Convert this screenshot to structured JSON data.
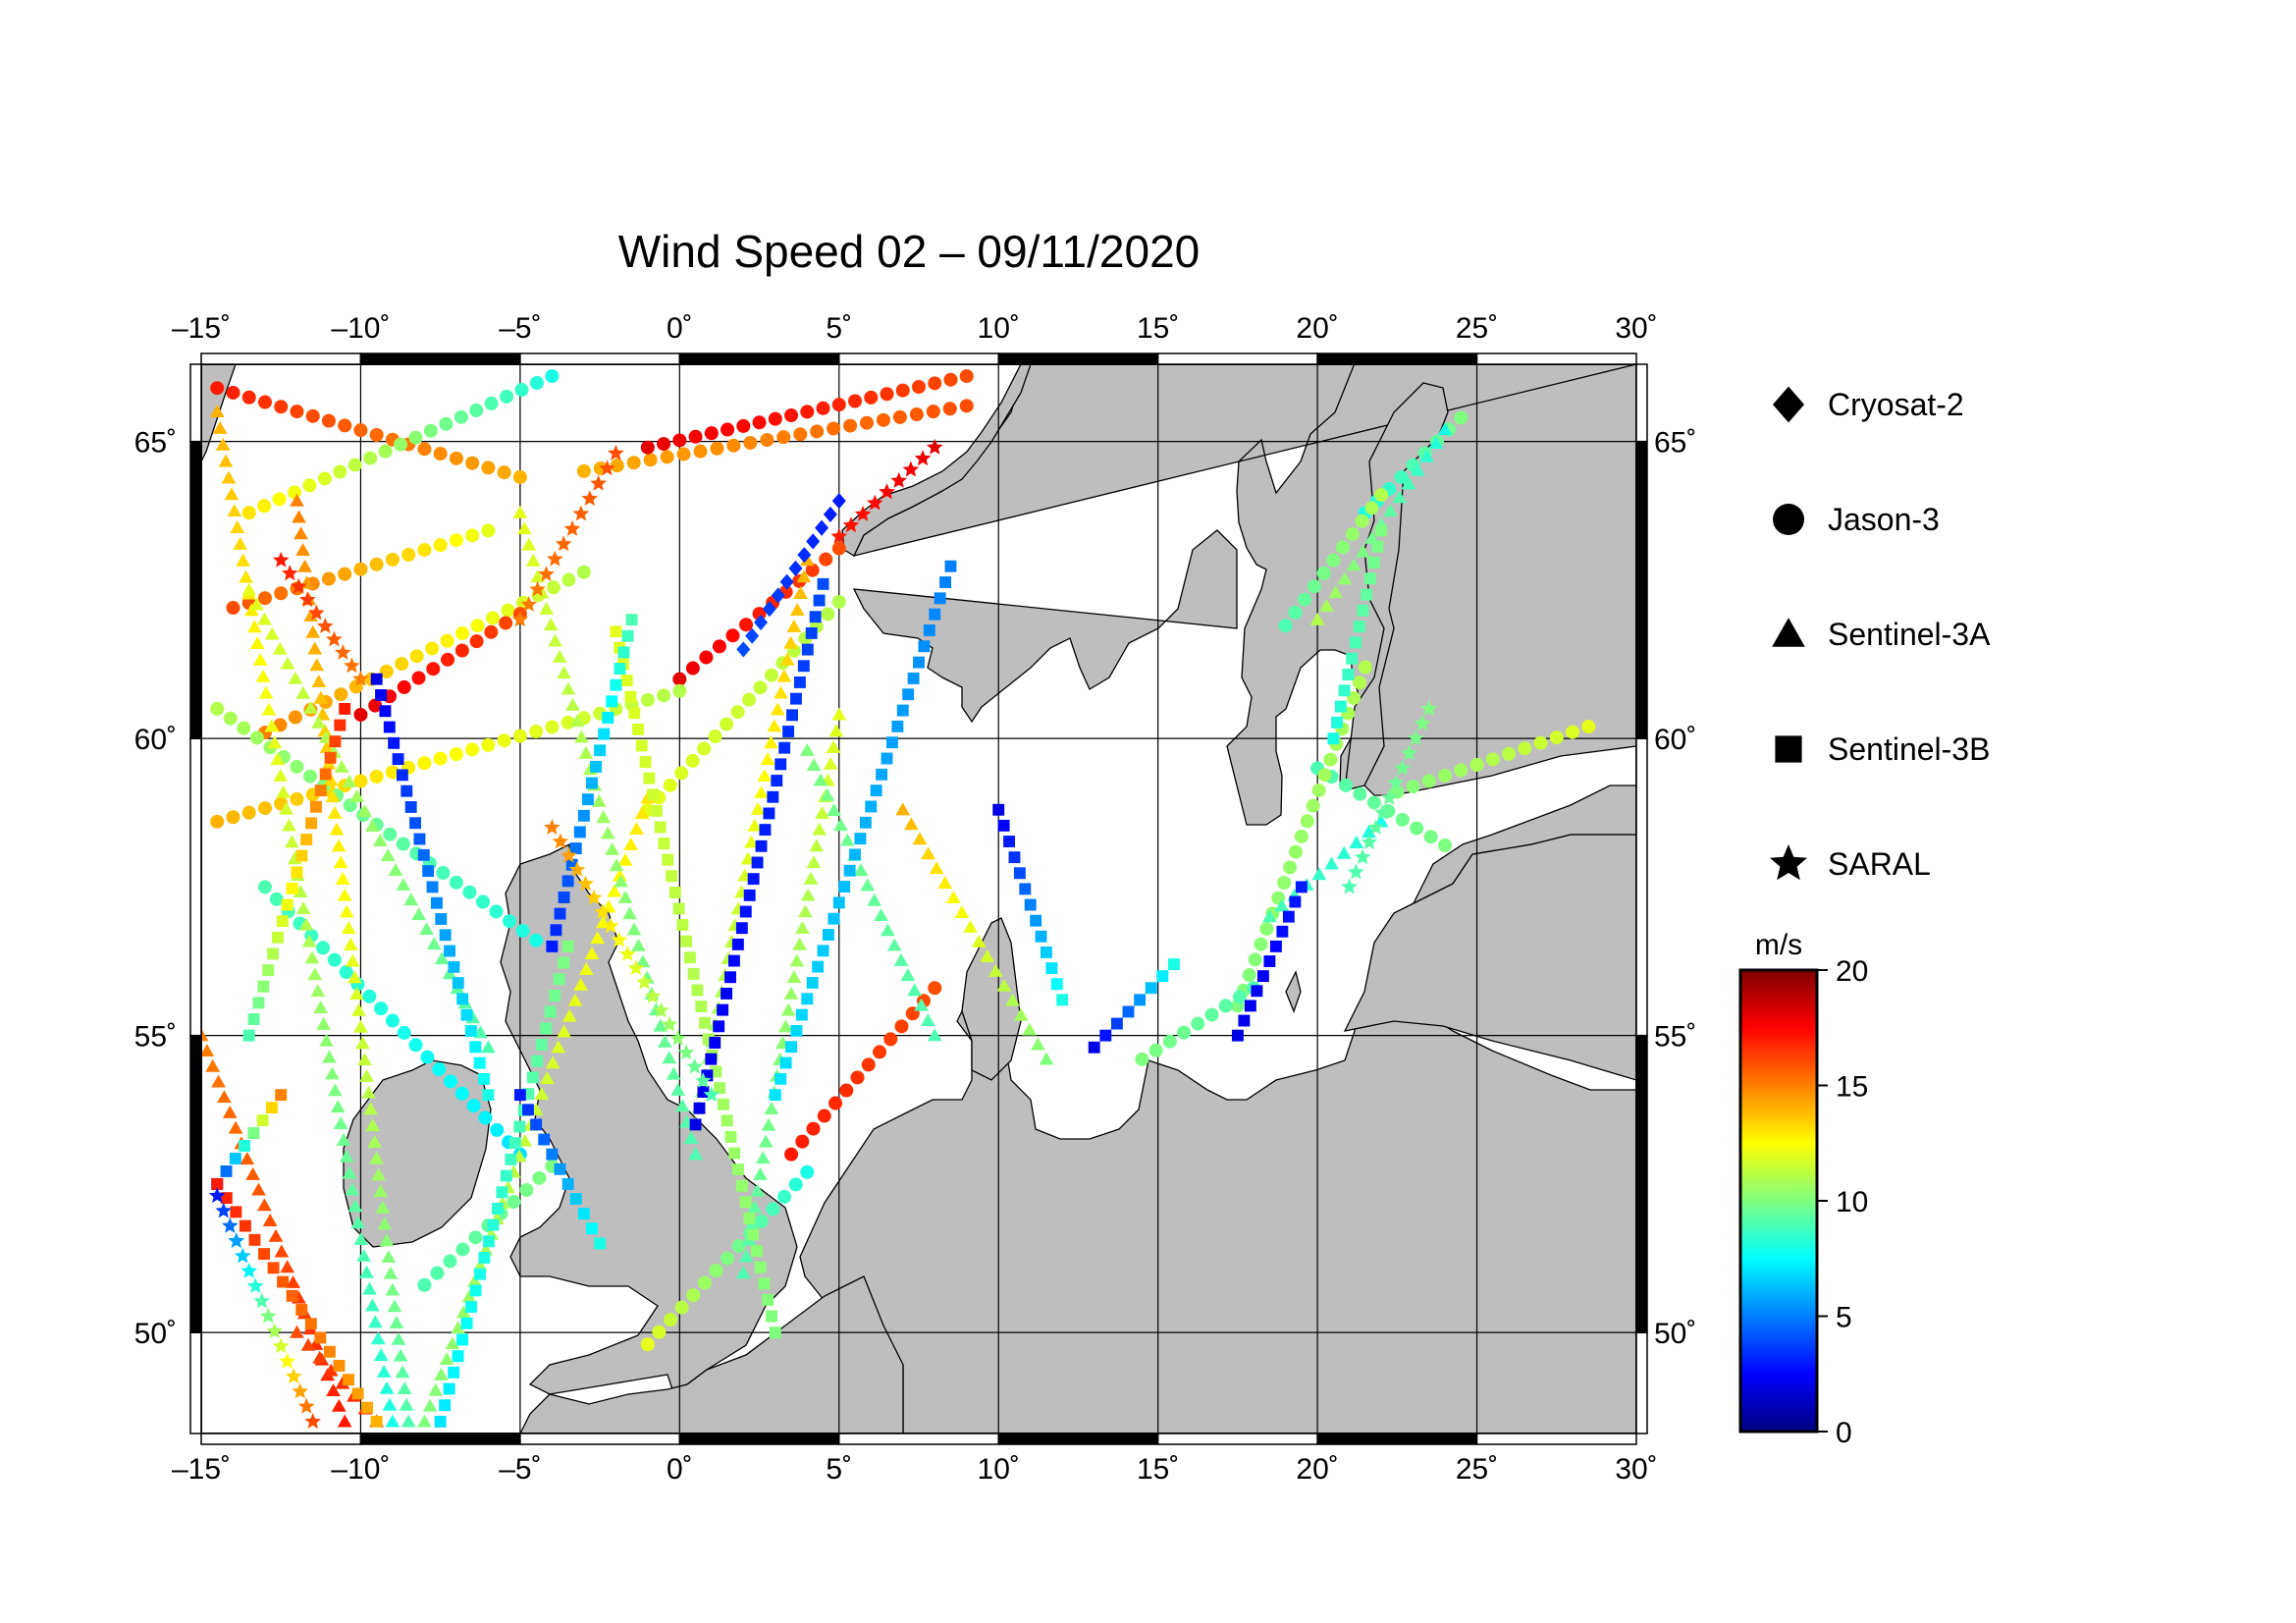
{
  "title": "Wind Speed 02 – 09/11/2020",
  "map": {
    "lon_range": [
      -15,
      30
    ],
    "lat_range": [
      48.3,
      66.3
    ],
    "lon_ticks": [
      {
        "value": -15,
        "label": "–15˚"
      },
      {
        "value": -10,
        "label": "–10˚"
      },
      {
        "value": -5,
        "label": "–5˚"
      },
      {
        "value": 0,
        "label": "0˚"
      },
      {
        "value": 5,
        "label": "5˚"
      },
      {
        "value": 10,
        "label": "10˚"
      },
      {
        "value": 15,
        "label": "15˚"
      },
      {
        "value": 20,
        "label": "20˚"
      },
      {
        "value": 25,
        "label": "25˚"
      },
      {
        "value": 30,
        "label": "30˚"
      }
    ],
    "lat_ticks": [
      {
        "value": 50,
        "label": "50˚"
      },
      {
        "value": 55,
        "label": "55˚"
      },
      {
        "value": 60,
        "label": "60˚"
      },
      {
        "value": 65,
        "label": "65˚"
      }
    ],
    "grid": true,
    "land_color": "#bebebe",
    "sea_color": "#ffffff"
  },
  "legend": {
    "items": [
      {
        "marker": "diamond",
        "label": "Cryosat-2"
      },
      {
        "marker": "circle",
        "label": "Jason-3"
      },
      {
        "marker": "triangle",
        "label": "Sentinel-3A"
      },
      {
        "marker": "square",
        "label": "Sentinel-3B"
      },
      {
        "marker": "star",
        "label": "SARAL"
      }
    ]
  },
  "colorbar": {
    "unit": "m/s",
    "min": 0,
    "max": 20,
    "ticks": [
      {
        "value": 0,
        "label": "0"
      },
      {
        "value": 5,
        "label": "5"
      },
      {
        "value": 10,
        "label": "10"
      },
      {
        "value": 15,
        "label": "15"
      },
      {
        "value": 20,
        "label": "20"
      }
    ],
    "colors": [
      "#00007f",
      "#0000ff",
      "#007fff",
      "#00ffff",
      "#7fff7f",
      "#ffff00",
      "#ff7f00",
      "#ff0000",
      "#7f0000"
    ]
  },
  "tracks": [
    {
      "sat": "circle",
      "lon": [
        -14.5,
        -5
      ],
      "lat": [
        65.9,
        64.4
      ],
      "wind": [
        17,
        14
      ]
    },
    {
      "sat": "circle",
      "lon": [
        -3,
        9
      ],
      "lat": [
        64.5,
        65.6
      ],
      "wind": [
        14,
        16
      ]
    },
    {
      "sat": "circle",
      "lon": [
        -13.5,
        -4
      ],
      "lat": [
        63.8,
        66.1
      ],
      "wind": [
        13,
        8
      ]
    },
    {
      "sat": "circle",
      "lon": [
        -1,
        9
      ],
      "lat": [
        64.9,
        66.1
      ],
      "wind": [
        18,
        16
      ]
    },
    {
      "sat": "circle",
      "lon": [
        -14,
        -6
      ],
      "lat": [
        62.2,
        63.5
      ],
      "wind": [
        16,
        12
      ]
    },
    {
      "sat": "circle",
      "lon": [
        0,
        5
      ],
      "lat": [
        61.0,
        63.2
      ],
      "wind": [
        18,
        16
      ]
    },
    {
      "sat": "circle",
      "lon": [
        -13,
        -3
      ],
      "lat": [
        60.1,
        62.8
      ],
      "wind": [
        15,
        11
      ]
    },
    {
      "sat": "circle",
      "lon": [
        -10,
        -5
      ],
      "lat": [
        60.4,
        62.1
      ],
      "wind": [
        18,
        16
      ]
    },
    {
      "sat": "circle",
      "lon": [
        -14.5,
        0
      ],
      "lat": [
        58.6,
        60.8
      ],
      "wind": [
        14,
        11
      ]
    },
    {
      "sat": "circle",
      "lon": [
        -1,
        5
      ],
      "lat": [
        58.8,
        62.3
      ],
      "wind": [
        12,
        11
      ]
    },
    {
      "sat": "circle",
      "lon": [
        -14.5,
        -4.5
      ],
      "lat": [
        60.5,
        56.6
      ],
      "wind": [
        11,
        8
      ]
    },
    {
      "sat": "circle",
      "lon": [
        -13,
        -5
      ],
      "lat": [
        57.5,
        53.0
      ],
      "wind": [
        9,
        7
      ]
    },
    {
      "sat": "circle",
      "lon": [
        3.5,
        8
      ],
      "lat": [
        53.0,
        55.8
      ],
      "wind": [
        17,
        16
      ]
    },
    {
      "sat": "circle",
      "lon": [
        -8,
        -4
      ],
      "lat": [
        50.8,
        52.8
      ],
      "wind": [
        9,
        10
      ]
    },
    {
      "sat": "circle",
      "lon": [
        -1,
        4
      ],
      "lat": [
        49.8,
        52.7
      ],
      "wind": [
        12,
        8
      ]
    },
    {
      "sat": "circle",
      "lon": [
        20.0,
        24.0
      ],
      "lat": [
        59.5,
        58.2
      ],
      "wind": [
        9,
        10
      ]
    },
    {
      "sat": "circle",
      "lon": [
        22.5,
        28.5
      ],
      "lat": [
        59.1,
        60.2
      ],
      "wind": [
        10,
        12
      ]
    },
    {
      "sat": "circle",
      "lon": [
        17.5,
        21.5
      ],
      "lat": [
        55.5,
        61.2
      ],
      "wind": [
        10,
        11
      ]
    },
    {
      "sat": "circle",
      "lon": [
        21.5,
        24.5
      ],
      "lat": [
        63.8,
        65.4
      ],
      "wind": [
        8,
        10
      ]
    },
    {
      "sat": "circle",
      "lon": [
        19.0,
        22.0
      ],
      "lat": [
        61.9,
        64.1
      ],
      "wind": [
        9,
        11
      ]
    },
    {
      "sat": "circle",
      "lon": [
        14.5,
        18.0
      ],
      "lat": [
        54.6,
        55.8
      ],
      "wind": [
        10,
        9
      ]
    },
    {
      "sat": "triangle",
      "lon": [
        -14.5,
        -9
      ],
      "lat": [
        65.5,
        48.5
      ],
      "wind": [
        14,
        8
      ]
    },
    {
      "sat": "triangle",
      "lon": [
        -12,
        -8.5
      ],
      "lat": [
        64.0,
        48.5
      ],
      "wind": [
        15,
        9
      ]
    },
    {
      "sat": "triangle",
      "lon": [
        -8,
        -1
      ],
      "lat": [
        48.5,
        59.0
      ],
      "wind": [
        10,
        13
      ]
    },
    {
      "sat": "triangle",
      "lon": [
        -5,
        0.5
      ],
      "lat": [
        63.8,
        53.0
      ],
      "wind": [
        12,
        9
      ]
    },
    {
      "sat": "triangle",
      "lon": [
        0.5,
        4
      ],
      "lat": [
        53.5,
        63.0
      ],
      "wind": [
        10,
        14
      ]
    },
    {
      "sat": "triangle",
      "lon": [
        2,
        5
      ],
      "lat": [
        51.0,
        60.4
      ],
      "wind": [
        9,
        12
      ]
    },
    {
      "sat": "triangle",
      "lon": [
        4,
        8
      ],
      "lat": [
        59.8,
        55.0
      ],
      "wind": [
        10,
        9
      ]
    },
    {
      "sat": "triangle",
      "lon": [
        7,
        11.5
      ],
      "lat": [
        58.8,
        54.6
      ],
      "wind": [
        14,
        10
      ]
    },
    {
      "sat": "triangle",
      "lon": [
        -13.5,
        -6
      ],
      "lat": [
        62.5,
        54.8
      ],
      "wind": [
        12,
        9
      ]
    },
    {
      "sat": "triangle",
      "lon": [
        -15,
        -10.5
      ],
      "lat": [
        55.0,
        48.5
      ],
      "wind": [
        15,
        17
      ]
    },
    {
      "sat": "triangle",
      "lon": [
        -12,
        -9.5
      ],
      "lat": [
        50.0,
        48.5
      ],
      "wind": [
        16,
        17
      ]
    },
    {
      "sat": "triangle",
      "lon": [
        18.5,
        22.0
      ],
      "lat": [
        57.0,
        58.6
      ],
      "wind": [
        9,
        8
      ]
    },
    {
      "sat": "triangle",
      "lon": [
        20.0,
        24.0
      ],
      "lat": [
        62.0,
        65.2
      ],
      "wind": [
        11,
        8
      ]
    },
    {
      "sat": "square",
      "lon": [
        -13.5,
        -10.5
      ],
      "lat": [
        55.0,
        60.5
      ],
      "wind": [
        9,
        17
      ]
    },
    {
      "sat": "square",
      "lon": [
        -14.5,
        -12.5
      ],
      "lat": [
        52.5,
        54.0
      ],
      "wind": [
        3,
        15
      ]
    },
    {
      "sat": "square",
      "lon": [
        -9.5,
        -6
      ],
      "lat": [
        61.0,
        54.0
      ],
      "wind": [
        2,
        8
      ]
    },
    {
      "sat": "square",
      "lon": [
        -7.5,
        -3.5
      ],
      "lat": [
        48.5,
        56.5
      ],
      "wind": [
        7,
        10
      ]
    },
    {
      "sat": "square",
      "lon": [
        -5,
        -2.5
      ],
      "lat": [
        54.0,
        51.5
      ],
      "wind": [
        3,
        8
      ]
    },
    {
      "sat": "square",
      "lon": [
        -2,
        3
      ],
      "lat": [
        61.8,
        50.0
      ],
      "wind": [
        12,
        10
      ]
    },
    {
      "sat": "square",
      "lon": [
        -4,
        -1.5
      ],
      "lat": [
        56.5,
        62.0
      ],
      "wind": [
        3,
        9
      ]
    },
    {
      "sat": "square",
      "lon": [
        0.5,
        4.5
      ],
      "lat": [
        53.5,
        62.6
      ],
      "wind": [
        2,
        4
      ]
    },
    {
      "sat": "square",
      "lon": [
        3,
        8.5
      ],
      "lat": [
        54.0,
        62.9
      ],
      "wind": [
        7,
        5
      ]
    },
    {
      "sat": "square",
      "lon": [
        -14.5,
        -9.5
      ],
      "lat": [
        52.5,
        48.5
      ],
      "wind": [
        17,
        14
      ]
    },
    {
      "sat": "square",
      "lon": [
        10,
        12
      ],
      "lat": [
        58.8,
        55.6
      ],
      "wind": [
        2,
        8
      ]
    },
    {
      "sat": "square",
      "lon": [
        17.5,
        19.5
      ],
      "lat": [
        55.0,
        57.5
      ],
      "wind": [
        2,
        3
      ]
    },
    {
      "sat": "square",
      "lon": [
        20.5,
        22.0
      ],
      "lat": [
        60.0,
        63.5
      ],
      "wind": [
        8,
        10
      ]
    },
    {
      "sat": "square",
      "lon": [
        13,
        15.5
      ],
      "lat": [
        54.8,
        56.2
      ],
      "wind": [
        2,
        8
      ]
    },
    {
      "sat": "star",
      "lon": [
        -14.5,
        -11.5
      ],
      "lat": [
        52.3,
        48.5
      ],
      "wind": [
        3,
        16
      ]
    },
    {
      "sat": "star",
      "lon": [
        -5,
        -2
      ],
      "lat": [
        62.0,
        64.8
      ],
      "wind": [
        15,
        16
      ]
    },
    {
      "sat": "star",
      "lon": [
        -4,
        1
      ],
      "lat": [
        58.5,
        54.0
      ],
      "wind": [
        15,
        9
      ]
    },
    {
      "sat": "star",
      "lon": [
        5,
        8
      ],
      "lat": [
        63.4,
        64.9
      ],
      "wind": [
        17,
        18
      ]
    },
    {
      "sat": "star",
      "lon": [
        -12.5,
        -10
      ],
      "lat": [
        63.0,
        61.0
      ],
      "wind": [
        17,
        15
      ]
    },
    {
      "sat": "star",
      "lon": [
        21.0,
        23.5
      ],
      "lat": [
        57.5,
        60.5
      ],
      "wind": [
        9,
        10
      ]
    },
    {
      "sat": "diamond",
      "lon": [
        2,
        5
      ],
      "lat": [
        61.5,
        64.0
      ],
      "wind": [
        4,
        3
      ]
    }
  ]
}
